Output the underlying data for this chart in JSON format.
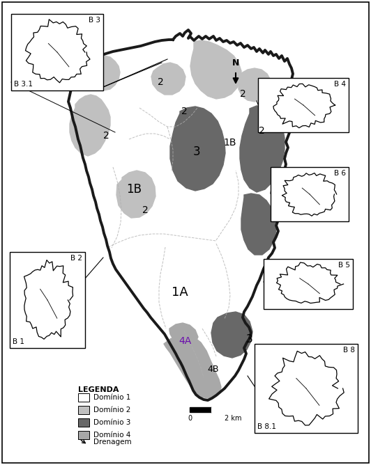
{
  "bg_color": "#ffffff",
  "domain1_color": "#ffffff",
  "domain2_color": "#c0c0c0",
  "domain3_color": "#686868",
  "domain4_color": "#a8a8a8",
  "outline_color": "#1a1a1a",
  "internal_line_color": "#aaaaaa",
  "legend_title": "LEGENDA",
  "legend_items": [
    {
      "label": "Domínio 1",
      "color": "#ffffff"
    },
    {
      "label": "Domínio 2",
      "color": "#c0c0c0"
    },
    {
      "label": "Domínio 3",
      "color": "#686868"
    },
    {
      "label": "Domínio 4",
      "color": "#a8a8a8"
    },
    {
      "label": "Drenagem",
      "color": "#000000"
    }
  ]
}
